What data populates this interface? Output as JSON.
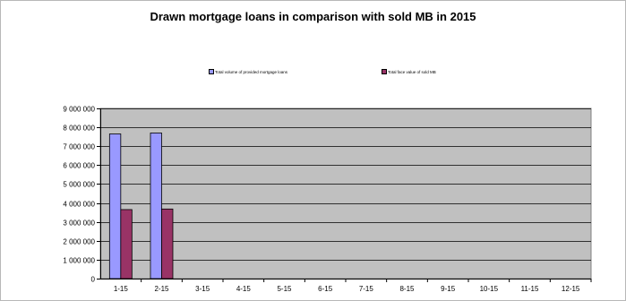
{
  "chart_data": {
    "type": "bar",
    "title": "Drawn mortgage loans in comparison with sold MB in 2015",
    "xlabel": "",
    "ylabel": "",
    "categories": [
      "1-15",
      "2-15",
      "3-15",
      "4-15",
      "5-15",
      "6-15",
      "7-15",
      "8-15",
      "9-15",
      "10-15",
      "11-15",
      "12-15"
    ],
    "series": [
      {
        "name": "Total volume of provided mortgage loans",
        "color": "#9999ff",
        "values": [
          7650000,
          7700000,
          null,
          null,
          null,
          null,
          null,
          null,
          null,
          null,
          null,
          null
        ]
      },
      {
        "name": "Total face value of sold MB",
        "color": "#993366",
        "values": [
          3650000,
          3680000,
          null,
          null,
          null,
          null,
          null,
          null,
          null,
          null,
          null,
          null
        ]
      }
    ],
    "ylim": [
      0,
      9000000
    ],
    "yticks": [
      0,
      1000000,
      2000000,
      3000000,
      4000000,
      5000000,
      6000000,
      7000000,
      8000000,
      9000000
    ],
    "ytick_labels": [
      "0",
      "1 000 000",
      "2 000 000",
      "3 000 000",
      "4 000 000",
      "5 000 000",
      "6 000 000",
      "7 000 000",
      "8 000 000",
      "9 000 000"
    ],
    "grid": true,
    "legend_position": "top",
    "plot_background": "#c0c0c0"
  }
}
